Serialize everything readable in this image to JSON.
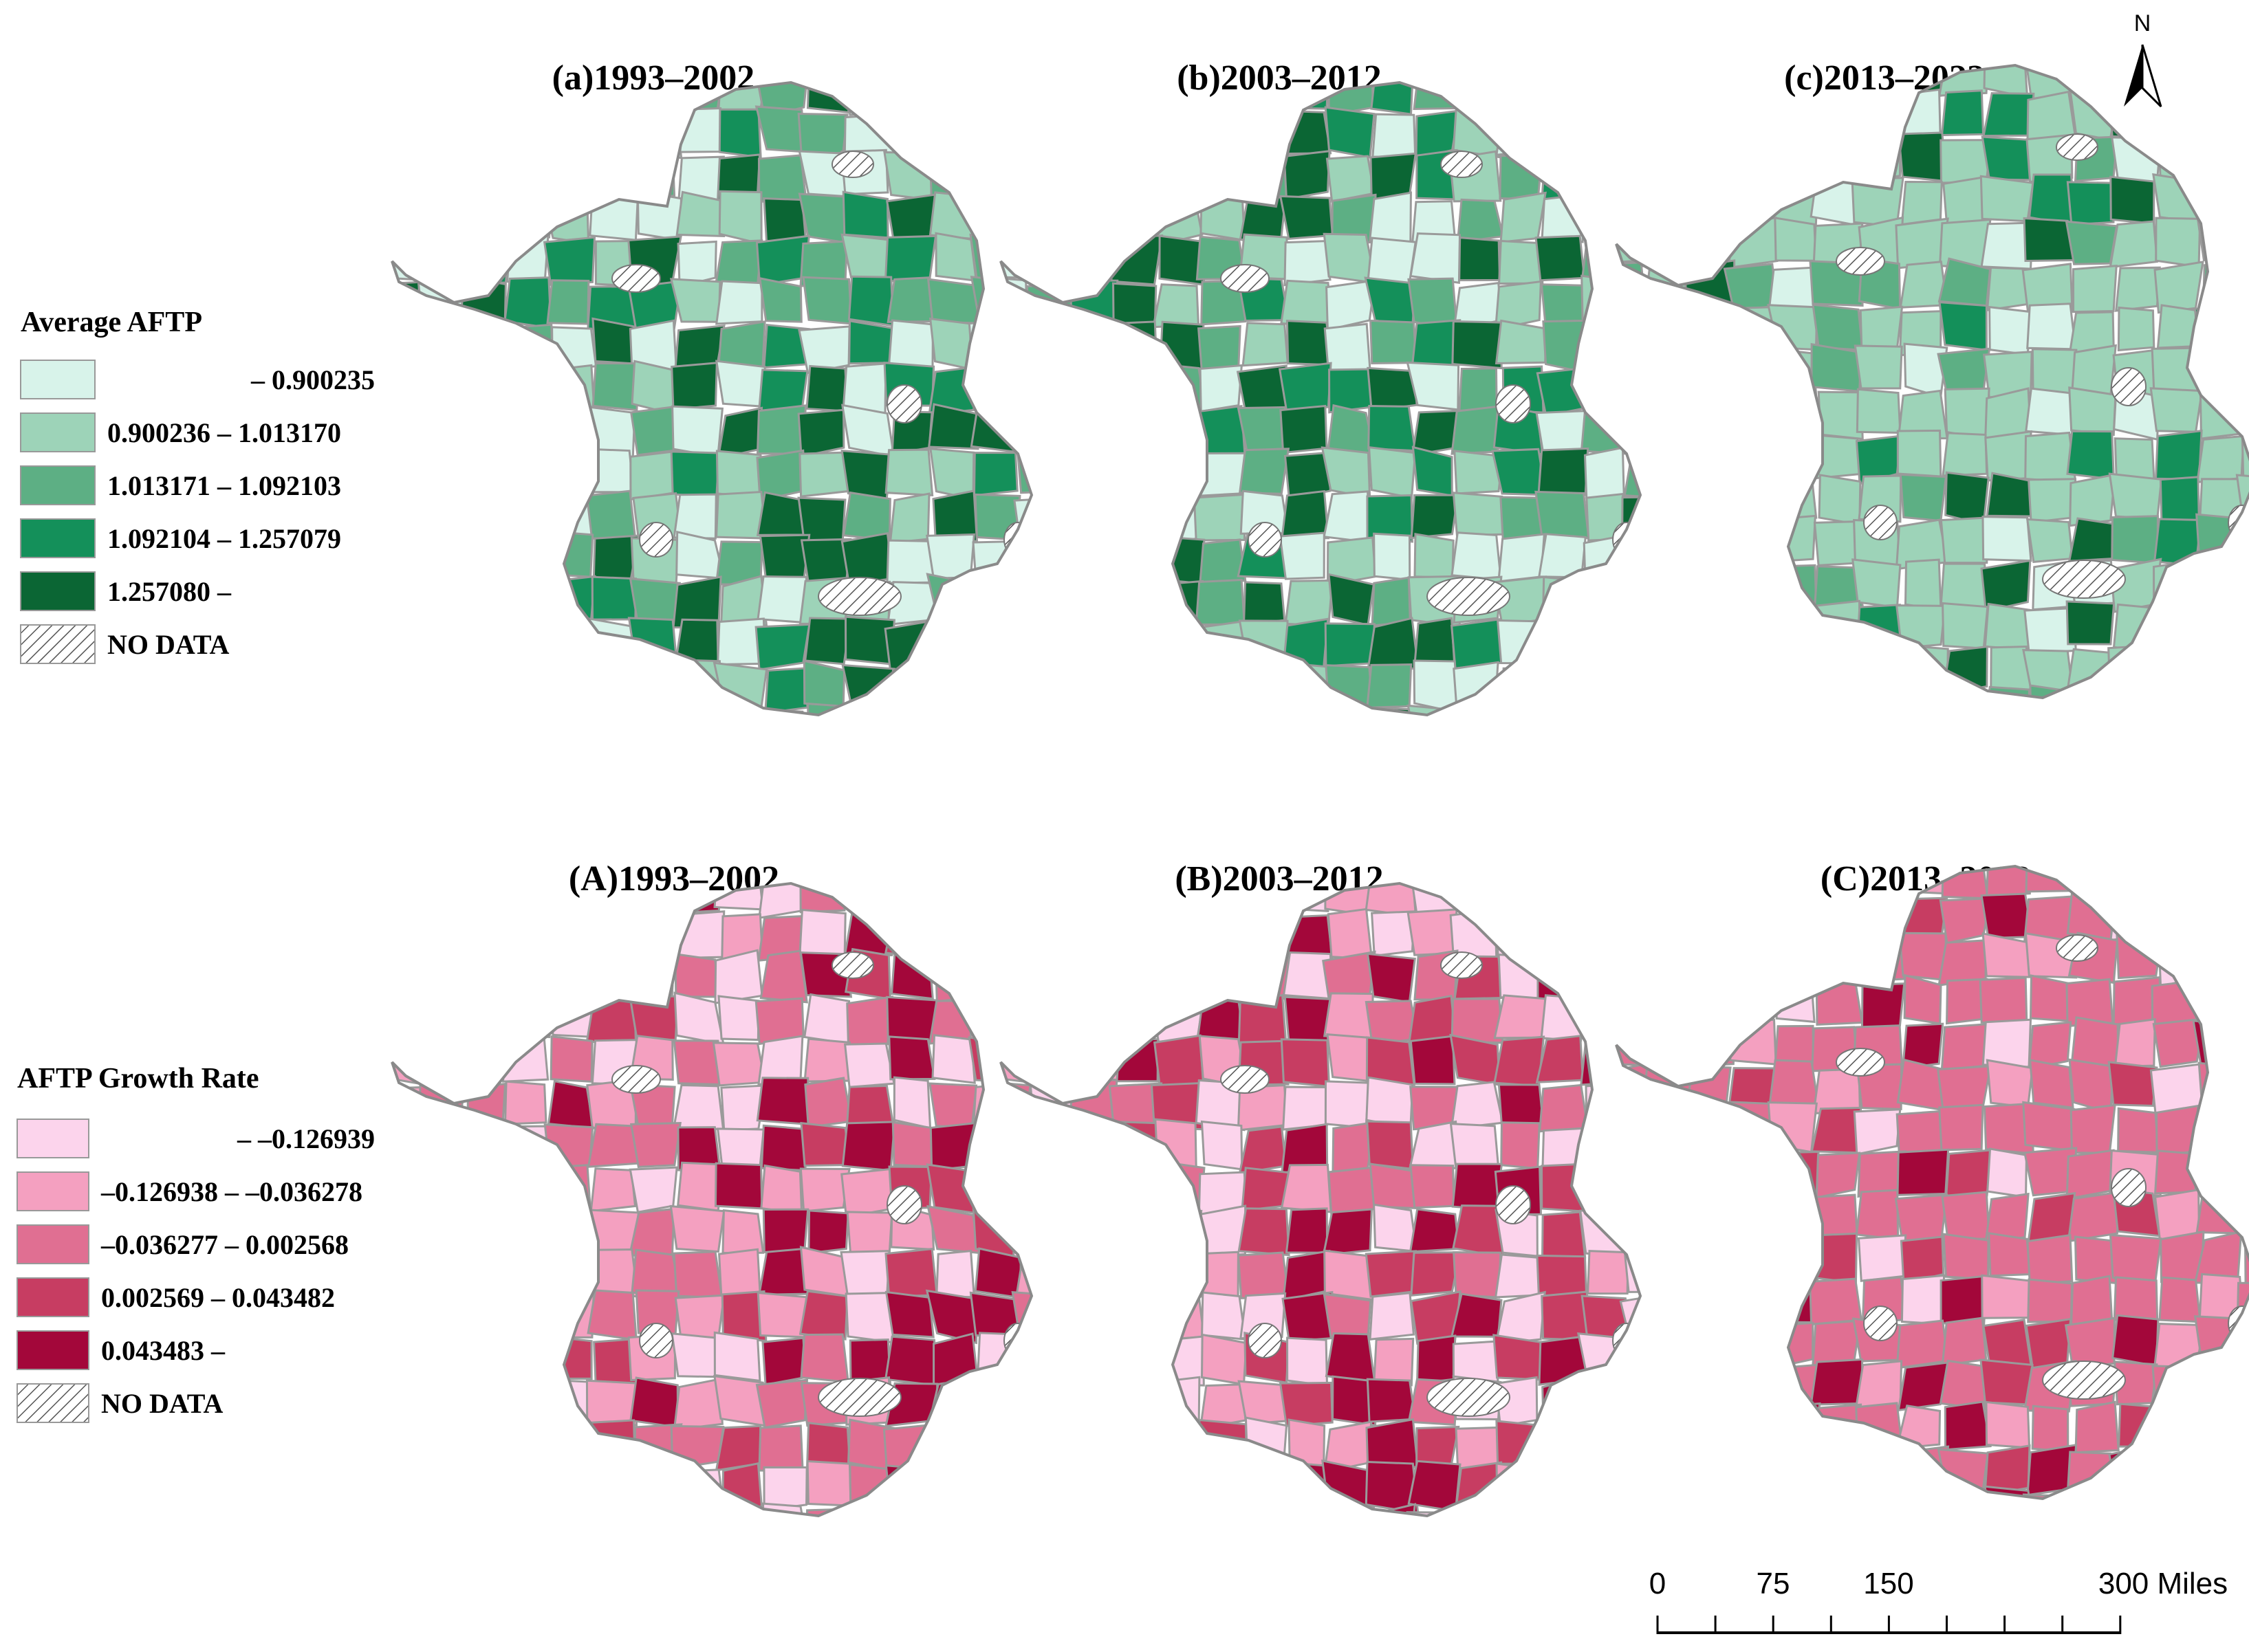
{
  "maps": [
    {
      "id": "a",
      "title": "(a)1993–2002",
      "legend": "average"
    },
    {
      "id": "b",
      "title": "(b)2003–2012",
      "legend": "average"
    },
    {
      "id": "c",
      "title": "(c)2013–2022",
      "legend": "average"
    },
    {
      "id": "A",
      "title": "(A)1993–2002",
      "legend": "growth"
    },
    {
      "id": "B",
      "title": "(B)2003–2012",
      "legend": "growth"
    },
    {
      "id": "C",
      "title": "(C)2013–2022",
      "legend": "growth"
    }
  ],
  "legends": {
    "average": {
      "title": "Average AFTP",
      "classes": [
        {
          "label": "– 0.900235",
          "color": "#d8f3ea"
        },
        {
          "label": "0.900236 – 1.013170",
          "color": "#9dd3b8"
        },
        {
          "label": "1.013171 – 1.092103",
          "color": "#5daf84"
        },
        {
          "label": "1.092104 – 1.257079",
          "color": "#14905a"
        },
        {
          "label": "1.257080 –",
          "color": "#0b6634"
        }
      ],
      "nodata": "NO DATA"
    },
    "growth": {
      "title": "AFTP Growth Rate",
      "classes": [
        {
          "label": "– –0.126939",
          "color": "#fcd4ec"
        },
        {
          "label": "–0.126938 – –0.036278",
          "color": "#f4a0c0"
        },
        {
          "label": "–0.036277 – 0.002568",
          "color": "#e06f92"
        },
        {
          "label": "0.002569 – 0.043482",
          "color": "#c73d62"
        },
        {
          "label": "0.043483 –",
          "color": "#a3073a"
        }
      ],
      "nodata": "NO DATA"
    }
  },
  "north_arrow": {
    "label": "N"
  },
  "scale_bar": {
    "ticks": [
      "0",
      "75",
      "150",
      "300 Miles"
    ]
  }
}
